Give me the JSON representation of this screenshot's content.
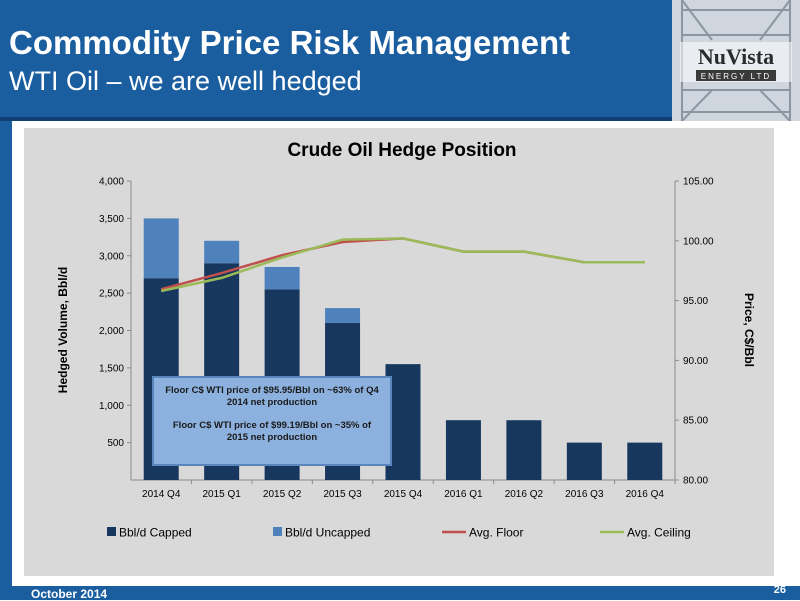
{
  "header": {
    "title": "Commodity Price Risk Management",
    "subtitle": "WTI Oil – we are well hedged"
  },
  "logo": {
    "text": "NuVista",
    "subtext": "ENERGY LTD"
  },
  "footer": {
    "date": "October 2014",
    "page": "26"
  },
  "annotation": {
    "line1": "Floor C$ WTI price of $95.95/Bbl on ~63% of Q4 2014 net production",
    "line2": "Floor C$ WTI price of $99.19/Bbl on ~35% of 2015 net production"
  },
  "chart_data": {
    "type": "bar",
    "title": "Crude Oil Hedge Position",
    "ylabel": "Hedged Volume, Bbl/d",
    "y2label": "Price, C$/Bbl",
    "categories": [
      "2014 Q4",
      "2015 Q1",
      "2015 Q2",
      "2015 Q3",
      "2015 Q4",
      "2016 Q1",
      "2016 Q2",
      "2016 Q3",
      "2016 Q4"
    ],
    "ylim": [
      0,
      4000
    ],
    "y_ticks": [
      "500",
      "1,000",
      "1,500",
      "2,000",
      "2,500",
      "3,000",
      "3,500",
      "4,000"
    ],
    "y2lim": [
      80,
      105
    ],
    "y2_ticks": [
      "80.00",
      "85.00",
      "90.00",
      "95.00",
      "100.00",
      "105.00"
    ],
    "series": [
      {
        "name": "Bbl/d Capped",
        "kind": "bar",
        "stack": "volume",
        "color": "#17375e",
        "values": [
          2700,
          2900,
          2550,
          2100,
          1550,
          800,
          800,
          500,
          500
        ]
      },
      {
        "name": "Bbl/d Uncapped",
        "kind": "bar",
        "stack": "volume",
        "color": "#4f81bd",
        "values": [
          800,
          300,
          300,
          200,
          0,
          0,
          0,
          0,
          0
        ]
      },
      {
        "name": "Avg. Floor",
        "kind": "line",
        "axis": "right",
        "color": "#c0504d",
        "values": [
          95.95,
          97.3,
          98.8,
          99.9,
          100.2,
          99.1,
          99.1,
          98.2,
          98.2
        ]
      },
      {
        "name": "Avg. Ceiling",
        "kind": "line",
        "axis": "right",
        "color": "#9bbb59",
        "values": [
          95.8,
          96.9,
          98.6,
          100.1,
          100.2,
          99.1,
          99.1,
          98.2,
          98.2
        ]
      }
    ],
    "legend": "bottom",
    "grid": false
  }
}
